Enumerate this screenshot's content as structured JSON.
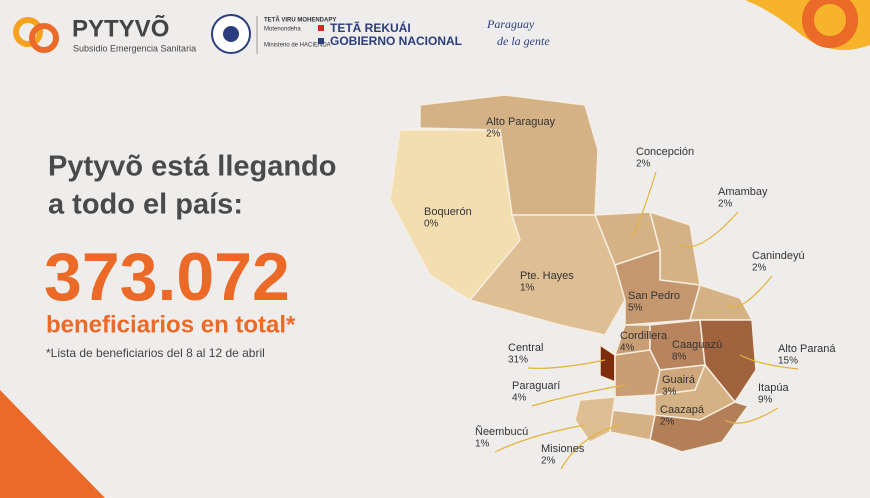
{
  "header": {
    "brand": "PYTYVÕ",
    "brand_subtitle": "Subsidio Emergencia Sanitaria",
    "ministry_top": "TETÃ VIRU MOHENDAPY",
    "ministry_sub": "Motenondeha",
    "ministry_name": "Ministerio de HACIENDA",
    "gov_top": "TETÃ REKUÁI",
    "gov_bottom": "GOBIERNO NACIONAL",
    "slogan_top": "Paraguay",
    "slogan_bottom": "de la gente"
  },
  "headline": {
    "line1": "Pytyvõ está llegando",
    "line2": "a todo el país:",
    "total": "373.072",
    "total_caption": "beneficiarios en total*",
    "footnote": "*Lista de beneficiarios del 8 al 12 de abril"
  },
  "regions": [
    {
      "name": "Alto Paraguay",
      "value": 2,
      "label": "2%"
    },
    {
      "name": "Boquerón",
      "value": 0,
      "label": "0%"
    },
    {
      "name": "Pte. Hayes",
      "value": 1,
      "label": "1%"
    },
    {
      "name": "Concepción",
      "value": 2,
      "label": "2%"
    },
    {
      "name": "Amambay",
      "value": 2,
      "label": "2%"
    },
    {
      "name": "San Pedro",
      "value": 5,
      "label": "5%"
    },
    {
      "name": "Canindeyú",
      "value": 2,
      "label": "2%"
    },
    {
      "name": "Cordillera",
      "value": 4,
      "label": "4%"
    },
    {
      "name": "Caaguazú",
      "value": 8,
      "label": "8%"
    },
    {
      "name": "Alto Paraná",
      "value": 15,
      "label": "15%"
    },
    {
      "name": "Central",
      "value": 31,
      "label": "31%"
    },
    {
      "name": "Paraguarí",
      "value": 4,
      "label": "4%"
    },
    {
      "name": "Guairá",
      "value": 3,
      "label": "3%"
    },
    {
      "name": "Caazapá",
      "value": 2,
      "label": "2%"
    },
    {
      "name": "Itapúa",
      "value": 9,
      "label": "9%"
    },
    {
      "name": "Misiones",
      "value": 2,
      "label": "2%"
    },
    {
      "name": "Ñeembucú",
      "value": 1,
      "label": "1%"
    }
  ]
}
